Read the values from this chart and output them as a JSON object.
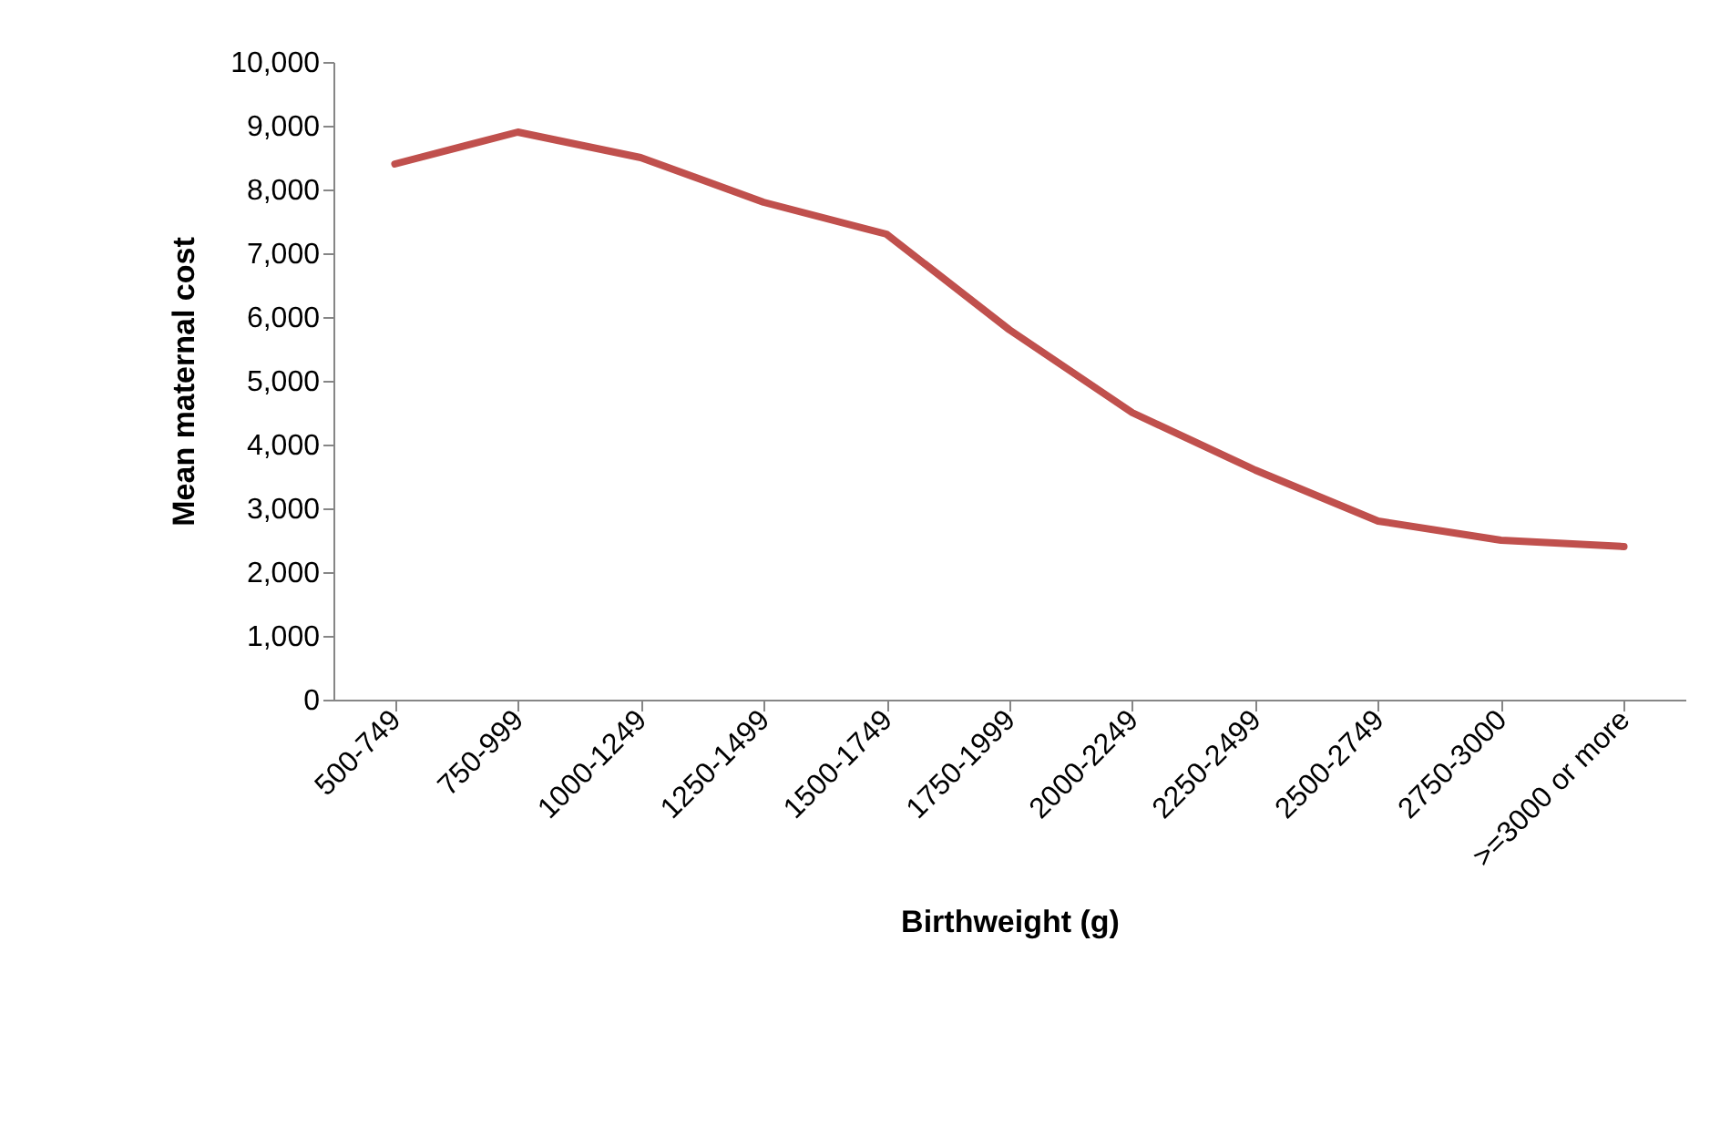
{
  "chart_data": {
    "type": "line",
    "xlabel": "Birthweight (g)",
    "ylabel": "Mean maternal cost",
    "categories": [
      "500-749",
      "750-999",
      "1000-1249",
      "1250-1499",
      "1500-1749",
      "1750-1999",
      "2000-2249",
      "2250-2499",
      "2500-2749",
      "2750-3000",
      ">=3000 or more"
    ],
    "series": [
      {
        "color": "#c0504d",
        "values": [
          8400,
          8900,
          8500,
          7800,
          7300,
          5800,
          4500,
          3600,
          2800,
          2500,
          2400
        ]
      }
    ],
    "ylim": [
      0,
      10000
    ],
    "yticks": [
      0,
      {
        "value": 1000,
        "label": "1,000"
      },
      {
        "value": 2000,
        "label": "2,000"
      },
      {
        "value": 3000,
        "label": "3,000"
      },
      {
        "value": 4000,
        "label": "4,000"
      },
      {
        "value": 5000,
        "label": "5,000"
      },
      {
        "value": 6000,
        "label": "6,000"
      },
      {
        "value": 7000,
        "label": "7,000"
      },
      {
        "value": 8000,
        "label": "8,000"
      },
      {
        "value": 9000,
        "label": "9,000"
      },
      {
        "value": 10000,
        "label": "10,000"
      }
    ],
    "grid": false,
    "legend": false,
    "marker": "none",
    "line_style": "solid"
  }
}
